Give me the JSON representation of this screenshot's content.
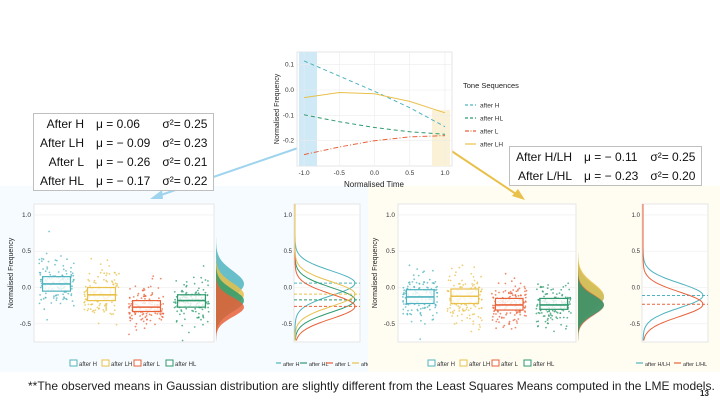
{
  "slide": {
    "footnote": "**The observed means in Gaussian distribution are slightly different from the Least Squares Means computed in the LME models.",
    "page_number": "13",
    "colors": {
      "after_H": "#4fb3bf",
      "after_HL": "#2e9a6e",
      "after_L": "#e8623a",
      "after_LH": "#e8c04a",
      "left_highlight": "#cfe9f7",
      "right_highlight": "#faf1d6",
      "panel_left_bg": "#f5fbfe",
      "panel_right_bg": "#fffcf2"
    }
  },
  "left_stats": {
    "rows": [
      {
        "label": "After H",
        "mu": "μ = 0.06",
        "sigma": "σ²= 0.25"
      },
      {
        "label": "After LH",
        "mu": "μ = − 0.09",
        "sigma": "σ²= 0.23"
      },
      {
        "label": "After L",
        "mu": "μ = − 0.26",
        "sigma": "σ²= 0.21"
      },
      {
        "label": "After HL",
        "mu": "μ = − 0.17",
        "sigma": "σ²= 0.22"
      }
    ]
  },
  "right_stats": {
    "rows": [
      {
        "label": "After H/LH",
        "mu": "μ = − 0.11",
        "sigma": "σ²= 0.25"
      },
      {
        "label": "After L/HL",
        "mu": "μ = − 0.23",
        "sigma": "σ²= 0.20"
      }
    ]
  },
  "chart_data": [
    {
      "type": "line",
      "xlabel": "Normalised Time",
      "ylabel": "Normalised Frequency",
      "xlim": [
        -1.1,
        1.1
      ],
      "ylim": [
        -0.3,
        0.15
      ],
      "x_ticks": [
        "-1.0",
        "-0.5",
        "0.0",
        "0.5",
        "1.0"
      ],
      "y_ticks": [
        "0.1",
        "0.0",
        "-0.1",
        "-0.2"
      ],
      "legend_title": "Tone Sequences",
      "legend_position": "right",
      "series": [
        {
          "name": "after H",
          "color": "#4fb3bf",
          "style": "dashed",
          "x": [
            -1.0,
            -0.5,
            0.0,
            0.5,
            1.0
          ],
          "y": [
            0.115,
            0.055,
            -0.005,
            -0.07,
            -0.145
          ]
        },
        {
          "name": "after HL",
          "color": "#2e9a6e",
          "style": "dashed",
          "x": [
            -1.0,
            -0.5,
            0.0,
            0.5,
            1.0
          ],
          "y": [
            -0.098,
            -0.125,
            -0.148,
            -0.165,
            -0.175
          ]
        },
        {
          "name": "after L",
          "color": "#e8623a",
          "style": "dashdot",
          "x": [
            -1.0,
            -0.5,
            0.0,
            0.5,
            1.0
          ],
          "y": [
            -0.255,
            -0.225,
            -0.2,
            -0.185,
            -0.18
          ]
        },
        {
          "name": "after LH",
          "color": "#e8c04a",
          "style": "solid",
          "x": [
            -1.0,
            -0.5,
            0.0,
            0.5,
            1.0
          ],
          "y": [
            -0.03,
            -0.01,
            -0.015,
            -0.045,
            -0.09
          ]
        }
      ]
    },
    {
      "type": "scatter",
      "ylabel": "Normalised Frequency",
      "ylim": [
        -0.75,
        1.15
      ],
      "y_ticks": [
        "1.0",
        "0.5",
        "0.0",
        "-0.5"
      ],
      "legend_position": "bottom",
      "series": [
        {
          "name": "after H",
          "color": "#4fb3bf",
          "median": 0.05,
          "q1": -0.05,
          "q3": 0.15
        },
        {
          "name": "after LH",
          "color": "#e8c04a",
          "median": -0.1,
          "q1": -0.18,
          "q3": 0.0
        },
        {
          "name": "after L",
          "color": "#e8623a",
          "median": -0.27,
          "q1": -0.33,
          "q3": -0.18
        },
        {
          "name": "after HL",
          "color": "#2e9a6e",
          "median": -0.18,
          "q1": -0.27,
          "q3": -0.1
        }
      ]
    },
    {
      "type": "line",
      "y_ticks": [
        "1.0",
        "0.5",
        "0.0",
        "-0.5"
      ],
      "legend_position": "bottom",
      "series": [
        {
          "name": "after H",
          "color": "#4fb3bf",
          "mean": 0.06
        },
        {
          "name": "after HL",
          "color": "#2e9a6e",
          "mean": -0.17
        },
        {
          "name": "after L",
          "color": "#e8623a",
          "mean": -0.26
        },
        {
          "name": "after LH",
          "color": "#e8c04a",
          "mean": -0.09
        }
      ]
    },
    {
      "type": "scatter",
      "ylabel": "Normalised Frequency",
      "ylim": [
        -0.75,
        1.15
      ],
      "y_ticks": [
        "1.0",
        "0.5",
        "0.0",
        "-0.5"
      ],
      "legend_position": "bottom",
      "series": [
        {
          "name": "after H",
          "color": "#4fb3bf",
          "median": -0.13,
          "q1": -0.22,
          "q3": -0.03
        },
        {
          "name": "after LH",
          "color": "#e8c04a",
          "median": -0.12,
          "q1": -0.22,
          "q3": -0.02
        },
        {
          "name": "after L",
          "color": "#e8623a",
          "median": -0.24,
          "q1": -0.31,
          "q3": -0.15
        },
        {
          "name": "after HL",
          "color": "#2e9a6e",
          "median": -0.24,
          "q1": -0.3,
          "q3": -0.15
        }
      ]
    },
    {
      "type": "line",
      "y_ticks": [
        "1.0",
        "0.5",
        "0.0",
        "-0.5"
      ],
      "legend_position": "bottom",
      "series": [
        {
          "name": "after H/LH",
          "color": "#4fb3bf",
          "mean": -0.11
        },
        {
          "name": "after L/HL",
          "color": "#e8623a",
          "mean": -0.23
        }
      ]
    }
  ]
}
